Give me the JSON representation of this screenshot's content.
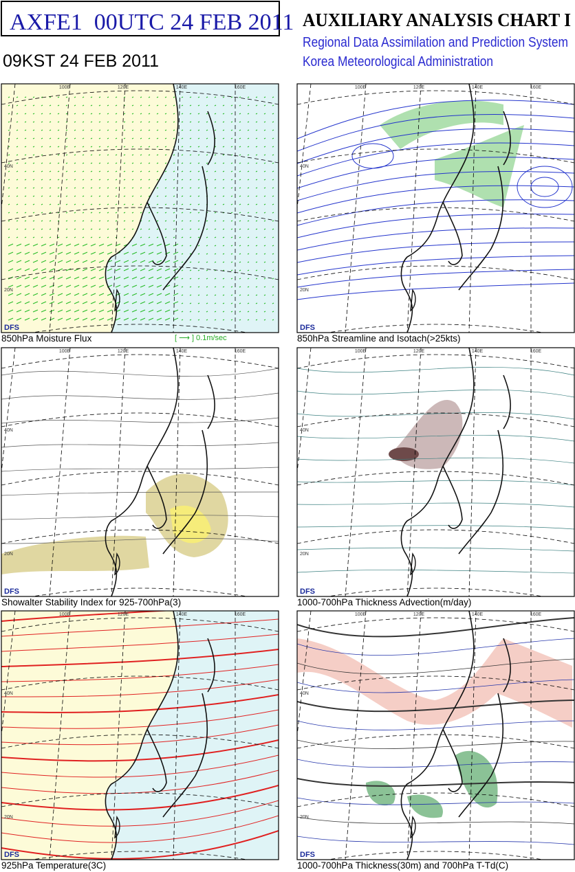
{
  "header": {
    "code_title": "AXFE1  00UTC 24 FEB 2011",
    "local_time": "09KST 24 FEB 2011",
    "chart_title": "AUXILIARY ANALYSIS CHART I",
    "system": "Regional Data Assimilation and Prediction System",
    "agency": "Korea Meteorological Administration"
  },
  "panels": [
    {
      "caption": "850hPa Moisture Flux",
      "legend": "[ ⟶ ] 0.1m/sec",
      "model": "DFS",
      "lon_labels": [
        "100E",
        "120E",
        "140E",
        "160E"
      ],
      "lat_labels": [
        "40N",
        "20N"
      ]
    },
    {
      "caption": "850hPa Streamline and Isotach(>25kts)",
      "model": "DFS",
      "lon_labels": [
        "100E",
        "120E",
        "140E",
        "160E"
      ],
      "lat_labels": [
        "40N",
        "20N"
      ]
    },
    {
      "caption": "Showalter Stability Index for 925-700hPa(3)",
      "model": "DFS",
      "lon_labels": [
        "100E",
        "120E",
        "140E",
        "160E"
      ],
      "lat_labels": [
        "40N",
        "20N"
      ]
    },
    {
      "caption": "1000-700hPa Thickness Advection(m/day)",
      "model": "DFS",
      "lon_labels": [
        "100E",
        "120E",
        "140E",
        "160E"
      ],
      "lat_labels": [
        "40N",
        "20N"
      ]
    },
    {
      "caption": "925hPa Temperature(3C)",
      "model": "DFS",
      "lon_labels": [
        "100E",
        "120E",
        "140E",
        "160E"
      ],
      "lat_labels": [
        "40N",
        "20N"
      ]
    },
    {
      "caption": "1000-700hPa Thickness(30m) and 700hPa T-Td(C)",
      "model": "DFS",
      "lon_labels": [
        "100E",
        "120E",
        "140E",
        "160E"
      ],
      "lat_labels": [
        "40N",
        "20N"
      ]
    }
  ]
}
